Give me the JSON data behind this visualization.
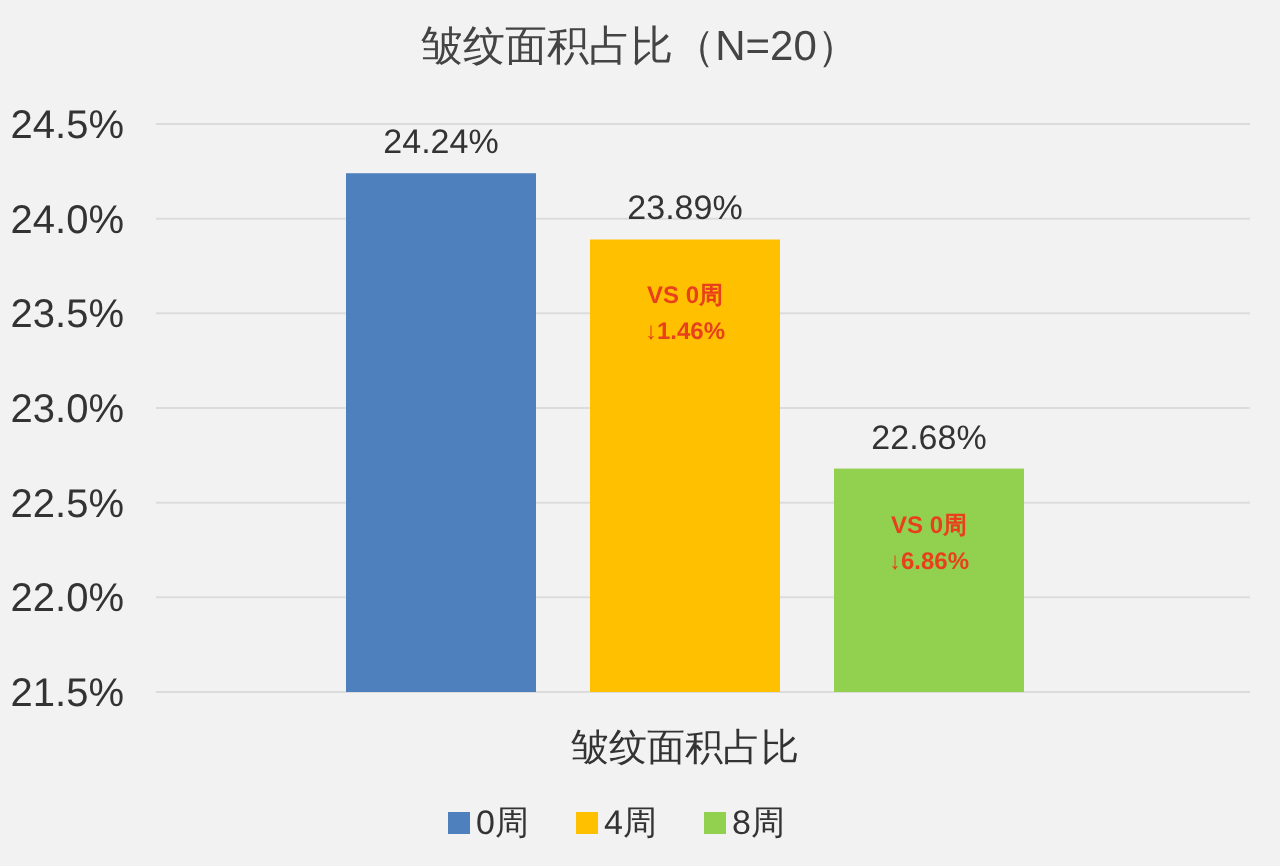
{
  "chart_data": {
    "type": "bar",
    "title": "皱纹面积占比（N=20）",
    "categories": [
      "皱纹面积占比"
    ],
    "series": [
      {
        "name": "0周",
        "color": "#4e80bd",
        "values": [
          24.24
        ],
        "value_labels": [
          "24.24%"
        ]
      },
      {
        "name": "4周",
        "color": "#ffc000",
        "values": [
          23.89
        ],
        "value_labels": [
          "23.89%"
        ]
      },
      {
        "name": "8周",
        "color": "#92d050",
        "values": [
          22.68
        ],
        "value_labels": [
          "22.68%"
        ]
      }
    ],
    "ylim": [
      21.5,
      24.5
    ],
    "yticks": [
      {
        "value": 21.5,
        "label": "21.5%"
      },
      {
        "value": 22.0,
        "label": "22.0%"
      },
      {
        "value": 22.5,
        "label": "22.5%"
      },
      {
        "value": 23.0,
        "label": "23.0%"
      },
      {
        "value": 23.5,
        "label": "23.5%"
      },
      {
        "value": 24.0,
        "label": "24.0%"
      },
      {
        "value": 24.5,
        "label": "24.5%"
      }
    ],
    "grid": "y",
    "legend": "bottom",
    "annotations": [
      "VS 0周\n↓1.46%",
      "VS 0周\n↓6.86%"
    ]
  }
}
